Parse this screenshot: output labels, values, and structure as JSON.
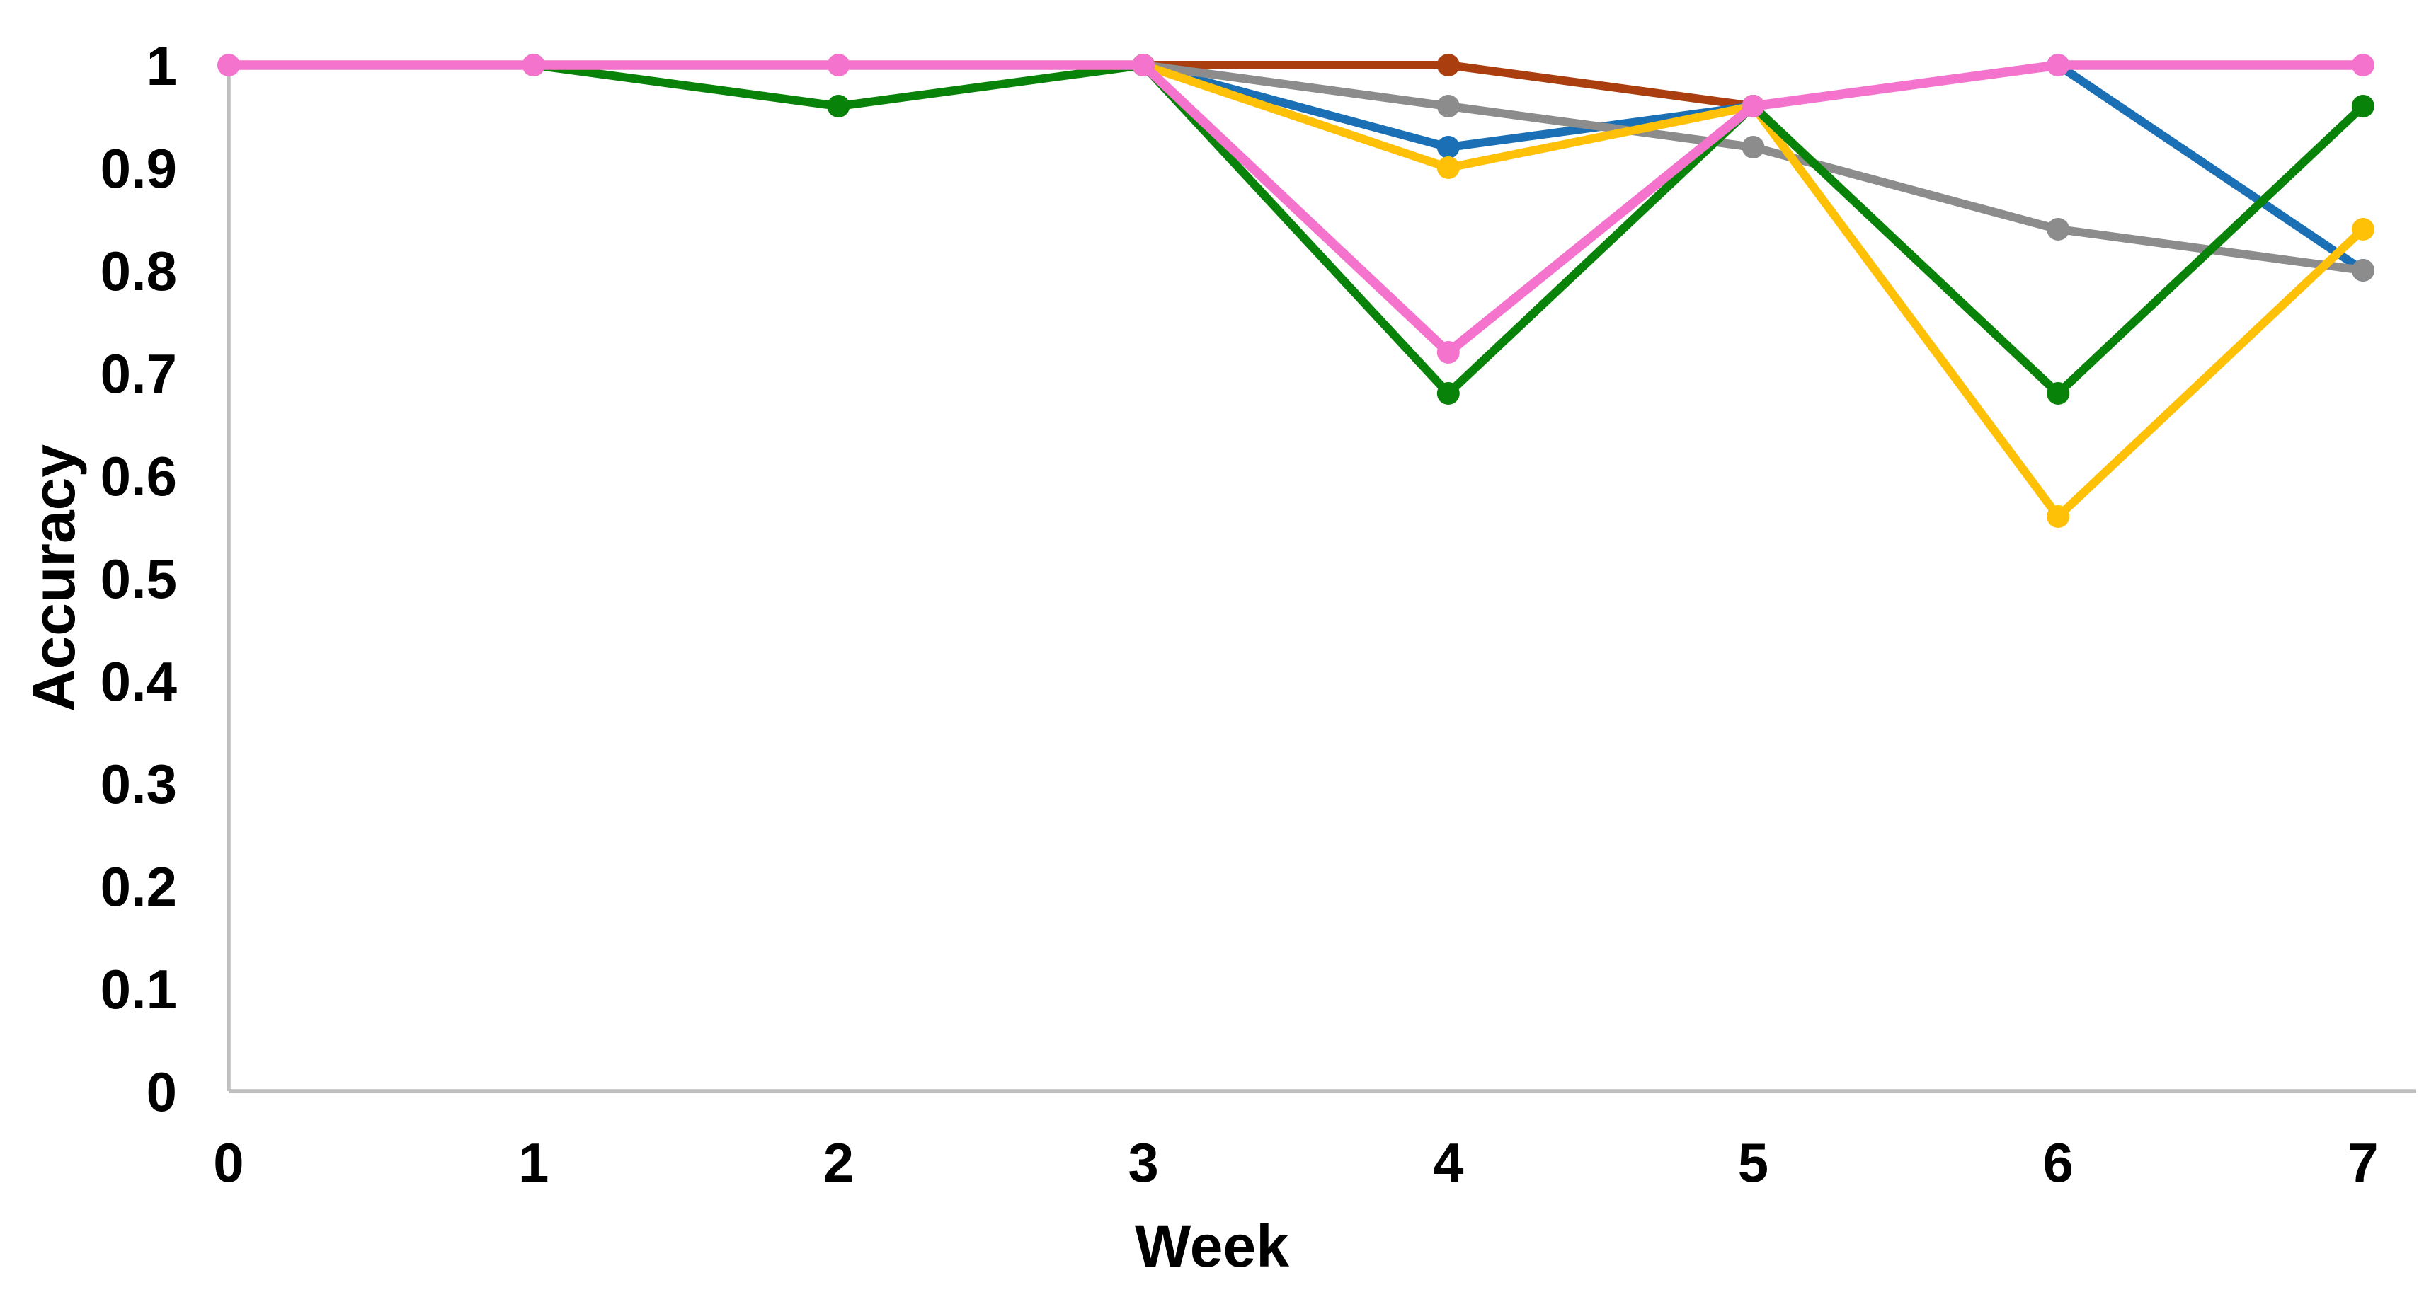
{
  "figure": {
    "background_color": "#FFFFFF",
    "axis_line_color": "#BFBFBF",
    "text_color": "#000000",
    "legend": "none",
    "gridlines": false
  },
  "chart_data": {
    "type": "line",
    "title": "",
    "xlabel": "Week",
    "ylabel": "Accuracy",
    "xlim": [
      0,
      7
    ],
    "ylim": [
      0,
      1
    ],
    "x_ticks": [
      {
        "value": 0,
        "label": "0"
      },
      {
        "value": 1,
        "label": "1"
      },
      {
        "value": 2,
        "label": "2"
      },
      {
        "value": 3,
        "label": "3"
      },
      {
        "value": 4,
        "label": "4"
      },
      {
        "value": 5,
        "label": "5"
      },
      {
        "value": 6,
        "label": "6"
      },
      {
        "value": 7,
        "label": "7"
      }
    ],
    "y_ticks": [
      {
        "value": 0,
        "label": "0"
      },
      {
        "value": 0.1,
        "label": "0.1"
      },
      {
        "value": 0.2,
        "label": "0.2"
      },
      {
        "value": 0.3,
        "label": "0.3"
      },
      {
        "value": 0.4,
        "label": "0.4"
      },
      {
        "value": 0.5,
        "label": "0.5"
      },
      {
        "value": 0.6,
        "label": "0.6"
      },
      {
        "value": 0.7,
        "label": "0.7"
      },
      {
        "value": 0.8,
        "label": "0.8"
      },
      {
        "value": 0.9,
        "label": "0.9"
      },
      {
        "value": 1,
        "label": "1"
      }
    ],
    "series": [
      {
        "name": "brown",
        "color": "#AA3E0E",
        "points": [
          [
            3,
            1
          ],
          [
            4,
            1
          ],
          [
            5,
            0.96
          ]
        ]
      },
      {
        "name": "blue",
        "color": "#1B6FB5",
        "points": [
          [
            3,
            1
          ],
          [
            4,
            0.92
          ],
          [
            5,
            0.96
          ],
          [
            6,
            1
          ],
          [
            7,
            0.8
          ]
        ]
      },
      {
        "name": "gray",
        "color": "#8C8C8C",
        "points": [
          [
            3,
            1
          ],
          [
            4,
            0.96
          ],
          [
            5,
            0.92
          ],
          [
            6,
            0.84
          ],
          [
            7,
            0.8
          ]
        ]
      },
      {
        "name": "yellow",
        "color": "#FFC008",
        "points": [
          [
            3,
            1
          ],
          [
            4,
            0.9
          ],
          [
            5,
            0.96
          ],
          [
            6,
            0.56
          ],
          [
            7,
            0.84
          ]
        ]
      },
      {
        "name": "green",
        "color": "#088208",
        "points": [
          [
            1,
            1
          ],
          [
            2,
            0.96
          ],
          [
            3,
            1
          ],
          [
            4,
            0.68
          ],
          [
            5,
            0.96
          ],
          [
            6,
            0.68
          ],
          [
            7,
            0.96
          ]
        ]
      },
      {
        "name": "pink",
        "color": "#F473CD",
        "points": [
          [
            0,
            1
          ],
          [
            1,
            1
          ],
          [
            2,
            1
          ],
          [
            3,
            1
          ],
          [
            4,
            0.72
          ],
          [
            5,
            0.96
          ],
          [
            6,
            1
          ],
          [
            7,
            1
          ]
        ]
      }
    ]
  }
}
